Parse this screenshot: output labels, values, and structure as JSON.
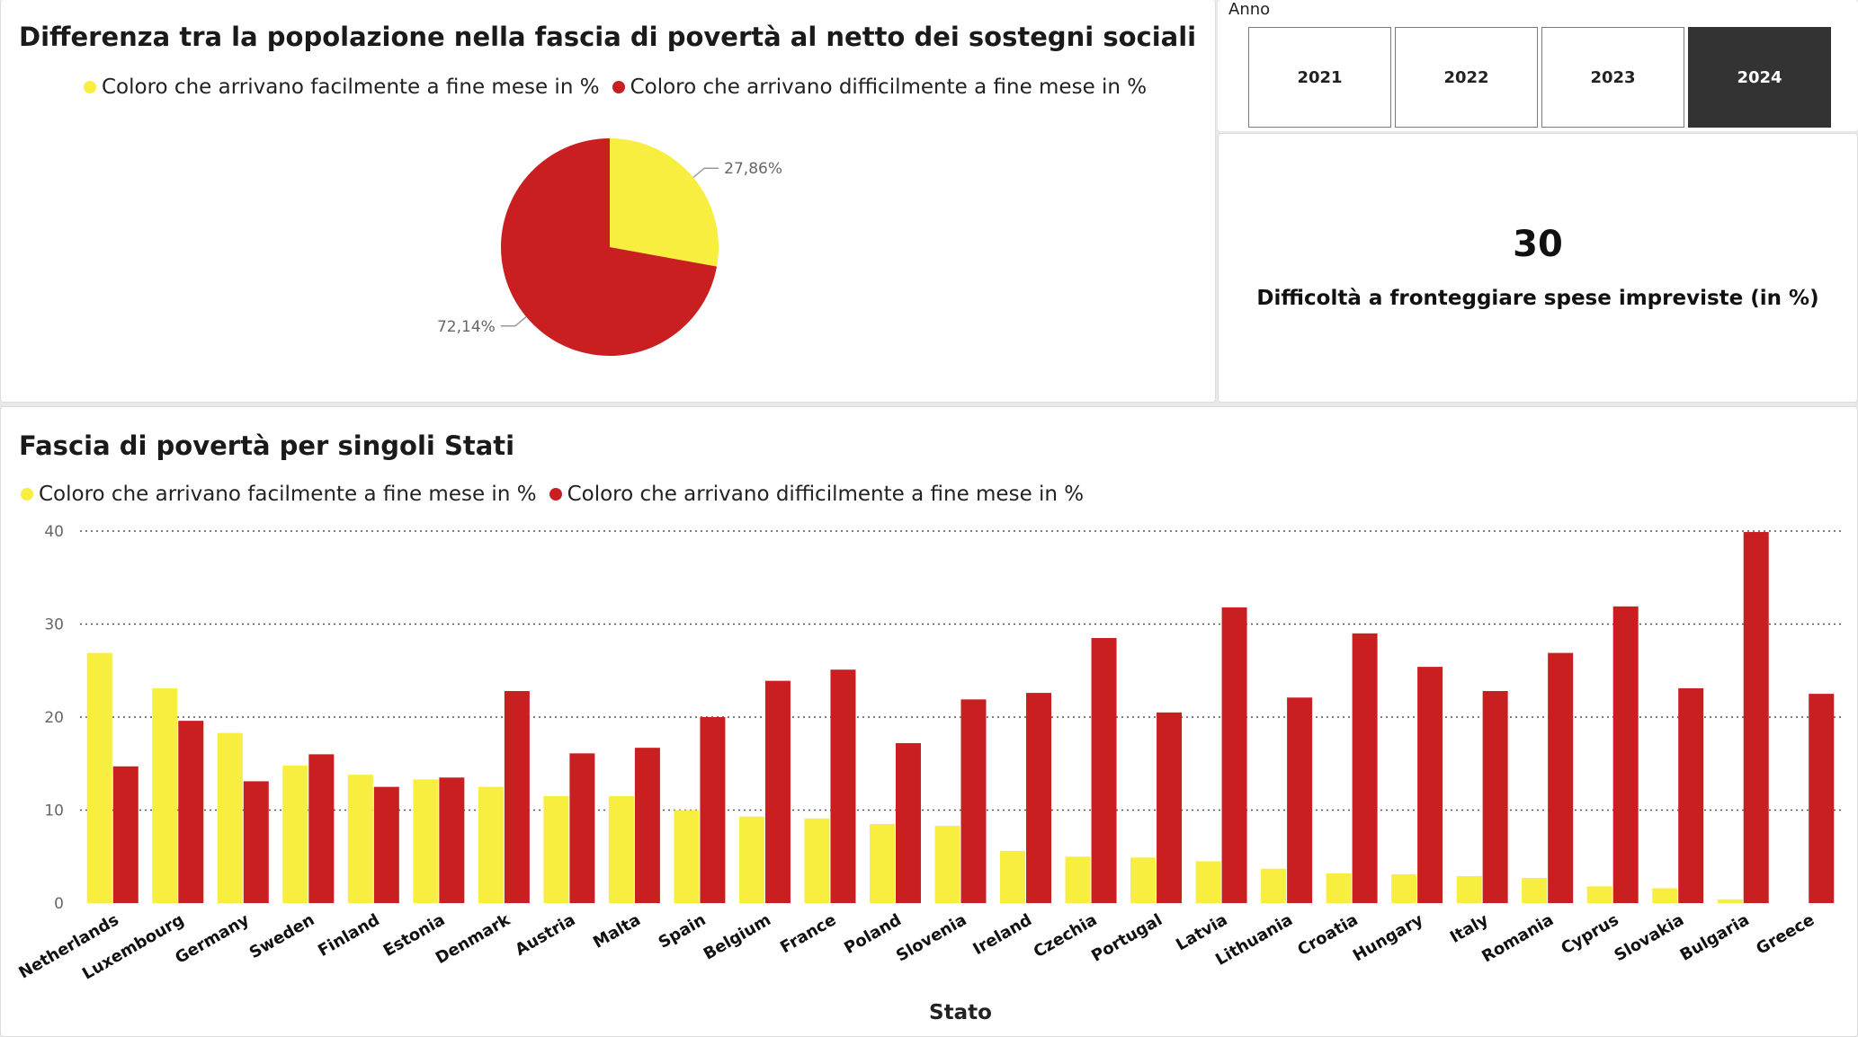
{
  "colors": {
    "easy": "#f7ee3f",
    "hard": "#c91f21",
    "selected": "#333333"
  },
  "pie_card": {
    "title": "Differenza tra la popolazione nella fascia di povertà al netto dei sostegni sociali",
    "legend": [
      {
        "label": "Coloro che arrivano facilmente a fine mese in %",
        "color": "#f7ee3f"
      },
      {
        "label": "Coloro che arrivano difficilmente a fine mese in %",
        "color": "#c91f21"
      }
    ],
    "labels": {
      "easy": "27,86%",
      "hard": "72,14%"
    }
  },
  "slicer": {
    "label": "Anno",
    "options": [
      "2021",
      "2022",
      "2023",
      "2024"
    ],
    "selected": "2024"
  },
  "kpi": {
    "value": "30",
    "label": "Difficoltà a fronteggiare spese impreviste (in %)"
  },
  "bar_card": {
    "title": "Fascia di povertà per singoli Stati",
    "legend": [
      {
        "label": "Coloro che arrivano facilmente a fine mese in %",
        "color": "#f7ee3f"
      },
      {
        "label": "Coloro che arrivano difficilmente a fine mese in %",
        "color": "#c91f21"
      }
    ],
    "xlabel": "Stato"
  },
  "chart_data": [
    {
      "type": "pie",
      "slices": [
        {
          "name": "Coloro che arrivano facilmente a fine mese in %",
          "value": 27.86,
          "label": "27,86%",
          "color": "#f7ee3f"
        },
        {
          "name": "Coloro che arrivano difficilmente a fine mese in %",
          "value": 72.14,
          "label": "72,14%",
          "color": "#c91f21"
        }
      ],
      "title": "Differenza tra la popolazione nella fascia di povertà al netto dei sostegni sociali",
      "legend_position": "top"
    },
    {
      "type": "bar",
      "title": "Fascia di povertà per singoli Stati",
      "xlabel": "Stato",
      "ylabel": "",
      "ylim": [
        0,
        40
      ],
      "yticks": [
        0,
        10,
        20,
        30,
        40
      ],
      "grid": true,
      "legend_position": "top-left",
      "categories": [
        "Netherlands",
        "Luxembourg",
        "Germany",
        "Sweden",
        "Finland",
        "Estonia",
        "Denmark",
        "Austria",
        "Malta",
        "Spain",
        "Belgium",
        "France",
        "Poland",
        "Slovenia",
        "Ireland",
        "Czechia",
        "Portugal",
        "Latvia",
        "Lithuania",
        "Croatia",
        "Hungary",
        "Italy",
        "Romania",
        "Cyprus",
        "Slovakia",
        "Bulgaria",
        "Greece"
      ],
      "series": [
        {
          "name": "Coloro che arrivano facilmente a fine mese in %",
          "color": "#f7ee3f",
          "values": [
            26.9,
            23.1,
            18.3,
            14.8,
            13.8,
            13.3,
            12.5,
            11.5,
            11.5,
            10.0,
            9.3,
            9.1,
            8.5,
            8.3,
            5.6,
            5.0,
            4.9,
            4.5,
            3.7,
            3.2,
            3.1,
            2.9,
            2.7,
            1.8,
            1.6,
            0.4,
            0
          ]
        },
        {
          "name": "Coloro che arrivano difficilmente a fine mese in %",
          "color": "#c91f21",
          "values": [
            14.7,
            19.6,
            13.1,
            16.0,
            12.5,
            13.5,
            22.8,
            16.1,
            16.7,
            20.0,
            23.9,
            25.1,
            17.2,
            21.9,
            22.6,
            28.5,
            20.5,
            31.8,
            22.1,
            29.0,
            25.4,
            22.8,
            26.9,
            31.9,
            23.1,
            39.9,
            22.5
          ]
        }
      ]
    }
  ]
}
